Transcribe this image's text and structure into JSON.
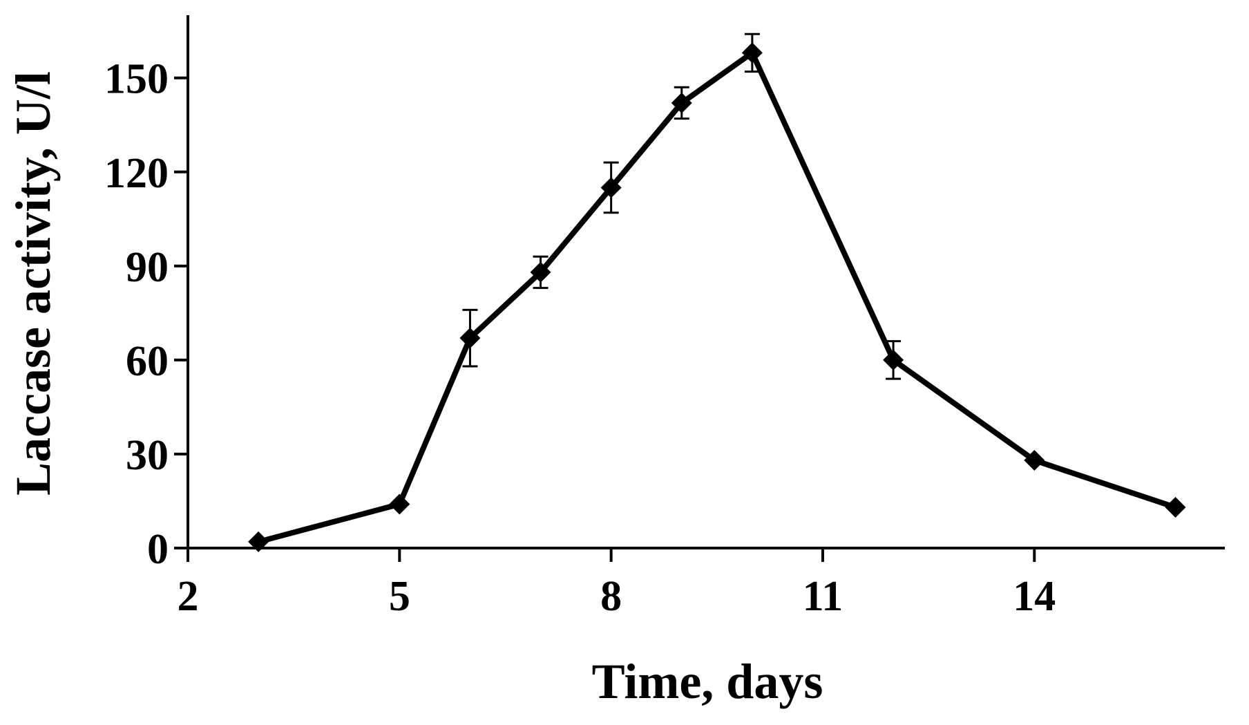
{
  "chart_data": {
    "type": "line",
    "title": "",
    "xlabel": "Time, days",
    "ylabel": "Laccase activity, U/l",
    "xlim": [
      2,
      16.7
    ],
    "ylim": [
      0,
      170
    ],
    "x_ticks": [
      2,
      5,
      8,
      11,
      14
    ],
    "y_ticks": [
      0,
      30,
      60,
      90,
      120,
      150
    ],
    "grid": false,
    "legend": "none",
    "series": [
      {
        "name": "",
        "color": "#000000",
        "marker": "diamond",
        "points": [
          {
            "x": 3,
            "y": 2,
            "err": null
          },
          {
            "x": 5,
            "y": 14,
            "err": null
          },
          {
            "x": 6,
            "y": 67,
            "err": 9
          },
          {
            "x": 7,
            "y": 88,
            "err": 5
          },
          {
            "x": 8,
            "y": 115,
            "err": 8
          },
          {
            "x": 9,
            "y": 142,
            "err": 5
          },
          {
            "x": 10,
            "y": 158,
            "err": 6
          },
          {
            "x": 12,
            "y": 60,
            "err": 6
          },
          {
            "x": 14,
            "y": 28,
            "err": null
          },
          {
            "x": 16,
            "y": 13,
            "err": null
          }
        ]
      }
    ]
  }
}
